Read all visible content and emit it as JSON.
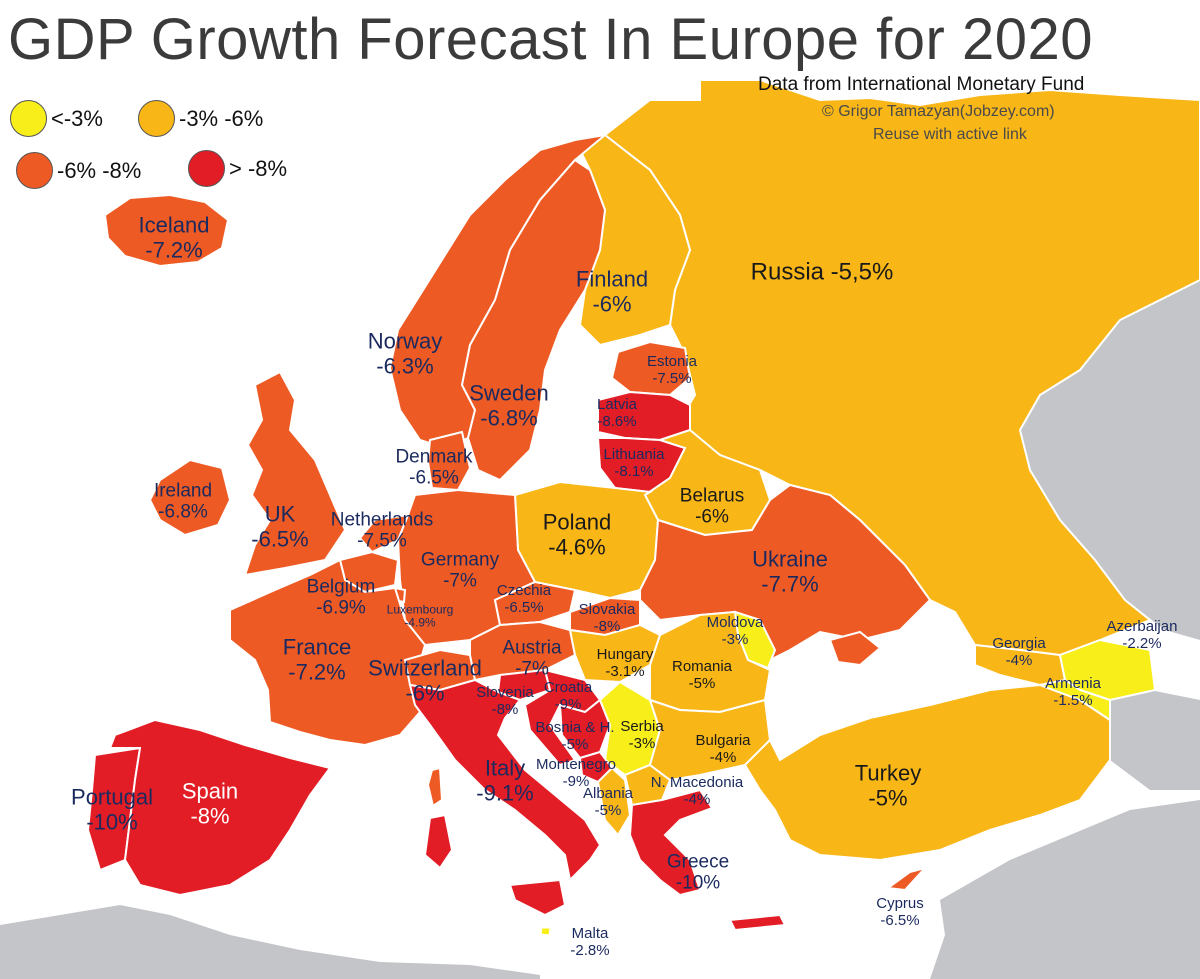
{
  "title": "GDP Growth Forecast In Europe for 2020",
  "credits": {
    "source": "Data from International Monetary Fund",
    "author": "© Grigor Tamazyan(Jobzey.com)",
    "reuse": "Reuse with active link"
  },
  "colors": {
    "yellow": "#f7ee1a",
    "amber": "#f8b617",
    "orange": "#ee5a24",
    "red": "#e21d26",
    "sea": "#ffffff",
    "nonEurope": "#c4c5c9",
    "border": "#ffffff"
  },
  "legend": [
    {
      "label": "<-3%",
      "color": "#f7ee1a"
    },
    {
      "label": "-3%  -6%",
      "color": "#f8b617"
    },
    {
      "label": "-6%  -8%",
      "color": "#ee5a24"
    },
    {
      "label": "> -8%",
      "color": "#e21d26"
    }
  ],
  "countries": [
    {
      "name": "Iceland",
      "value": "-7.2%"
    },
    {
      "name": "Norway",
      "value": "-6.3%"
    },
    {
      "name": "Sweden",
      "value": "-6.8%"
    },
    {
      "name": "Finland",
      "value": "-6%"
    },
    {
      "name": "Russia",
      "value": "-5,5%"
    },
    {
      "name": "Estonia",
      "value": "-7.5%"
    },
    {
      "name": "Latvia",
      "value": "-8.6%"
    },
    {
      "name": "Lithuania",
      "value": "-8.1%"
    },
    {
      "name": "Denmark",
      "value": "-6.5%"
    },
    {
      "name": "Ireland",
      "value": "-6.8%"
    },
    {
      "name": "UK",
      "value": "-6.5%"
    },
    {
      "name": "Netherlands",
      "value": "-7.5%"
    },
    {
      "name": "Belarus",
      "value": "-6%"
    },
    {
      "name": "Poland",
      "value": "-4.6%"
    },
    {
      "name": "Germany",
      "value": "-7%"
    },
    {
      "name": "Belgium",
      "value": "-6.9%"
    },
    {
      "name": "Luxembourg",
      "value": "-4.9%"
    },
    {
      "name": "Czechia",
      "value": "-6.5%"
    },
    {
      "name": "Slovakia",
      "value": "-8%"
    },
    {
      "name": "Ukraine",
      "value": "-7.7%"
    },
    {
      "name": "Moldova",
      "value": "-3%"
    },
    {
      "name": "France",
      "value": "-7.2%"
    },
    {
      "name": "Switzerland",
      "value": "-6%"
    },
    {
      "name": "Austria",
      "value": "-7%"
    },
    {
      "name": "Hungary",
      "value": "-3.1%"
    },
    {
      "name": "Romania",
      "value": "-5%"
    },
    {
      "name": "Slovenia",
      "value": "-8%"
    },
    {
      "name": "Croatia",
      "value": "-9%"
    },
    {
      "name": "Serbia",
      "value": "-3%"
    },
    {
      "name": "Bosnia & H.",
      "value": "-5%"
    },
    {
      "name": "Montenegro",
      "value": "-9%"
    },
    {
      "name": "Bulgaria",
      "value": "-4%"
    },
    {
      "name": "N. Macedonia",
      "value": "-4%"
    },
    {
      "name": "Albania",
      "value": "-5%"
    },
    {
      "name": "Italy",
      "value": "-9.1%"
    },
    {
      "name": "Greece",
      "value": "-10%"
    },
    {
      "name": "Portugal",
      "value": "-10%"
    },
    {
      "name": "Spain",
      "value": "-8%"
    },
    {
      "name": "Georgia",
      "value": "-4%"
    },
    {
      "name": "Azerbaijan",
      "value": "-2.2%"
    },
    {
      "name": "Armenia",
      "value": "-1.5%"
    },
    {
      "name": "Turkey",
      "value": "-5%"
    },
    {
      "name": "Cyprus",
      "value": "-6.5%"
    },
    {
      "name": "Malta",
      "value": "-2.8%"
    }
  ]
}
